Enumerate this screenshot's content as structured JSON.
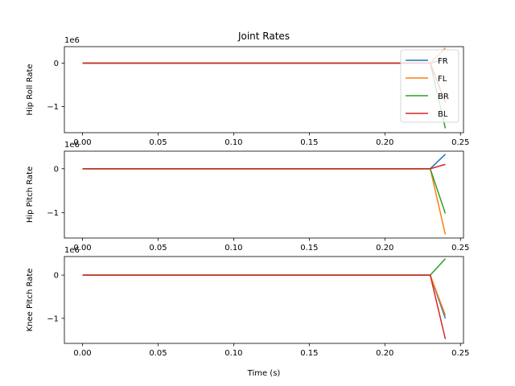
{
  "chart_data": {
    "type": "line",
    "title": "Joint Rates",
    "xlabel": "Time (s)",
    "x": [
      0.0,
      0.23,
      0.24
    ],
    "xlim": [
      -0.012,
      0.252
    ],
    "xticks": [
      0.0,
      0.05,
      0.1,
      0.15,
      0.2,
      0.25
    ],
    "xtick_labels": [
      "0.00",
      "0.05",
      "0.10",
      "0.15",
      "0.20",
      "0.25"
    ],
    "legend": {
      "location": "upper right",
      "entries": [
        "FR",
        "FL",
        "BR",
        "BL"
      ]
    },
    "colors": {
      "FR": "#1f77b4",
      "FL": "#ff7f0e",
      "BR": "#2ca02c",
      "BL": "#d62728"
    },
    "panels": [
      {
        "ylabel": "Hip Roll Rate",
        "offset_label": "1e6",
        "ylim": [
          -1.6,
          0.38
        ],
        "yticks": [
          -1,
          0
        ],
        "ytick_labels": [
          "−1",
          "0"
        ],
        "series": [
          {
            "name": "FR",
            "values": [
              0,
              0,
              0.1
            ]
          },
          {
            "name": "FL",
            "values": [
              0,
              0,
              0.35
            ]
          },
          {
            "name": "BR",
            "values": [
              0,
              0,
              -1.5
            ]
          },
          {
            "name": "BL",
            "values": [
              0,
              0,
              -0.9
            ]
          }
        ]
      },
      {
        "ylabel": "Hip Pitch Rate",
        "offset_label": "1e6",
        "ylim": [
          -1.58,
          0.4
        ],
        "yticks": [
          -1,
          0
        ],
        "ytick_labels": [
          "−1",
          "0"
        ],
        "series": [
          {
            "name": "FR",
            "values": [
              0,
              0,
              0.33
            ]
          },
          {
            "name": "FL",
            "values": [
              0,
              0,
              -1.5
            ]
          },
          {
            "name": "BR",
            "values": [
              0,
              0,
              -1.02
            ]
          },
          {
            "name": "BL",
            "values": [
              0,
              0,
              0.1
            ]
          }
        ]
      },
      {
        "ylabel": "Knee Pitch Rate",
        "offset_label": "1e6",
        "ylim": [
          -1.58,
          0.43
        ],
        "yticks": [
          -1,
          0
        ],
        "ytick_labels": [
          "−1",
          "0"
        ],
        "series": [
          {
            "name": "FR",
            "values": [
              0,
              0,
              -1.0
            ]
          },
          {
            "name": "FL",
            "values": [
              0,
              0,
              -0.93
            ]
          },
          {
            "name": "BR",
            "values": [
              0,
              0,
              0.38
            ]
          },
          {
            "name": "BL",
            "values": [
              0,
              0,
              -1.48
            ]
          }
        ]
      }
    ]
  }
}
